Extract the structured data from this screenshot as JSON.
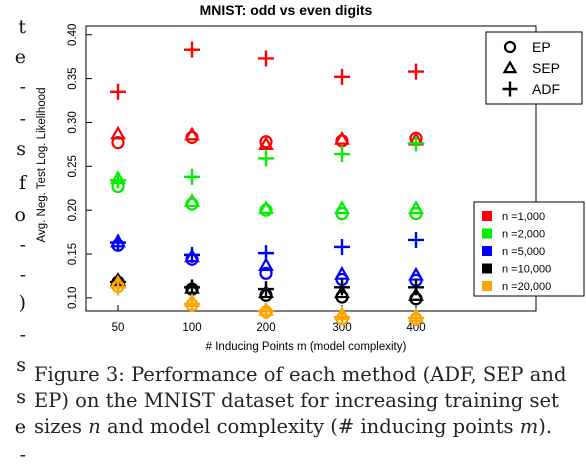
{
  "left_margin_fragments": [
    "t",
    "e",
    "-",
    "-",
    "s",
    "f",
    "o",
    "-",
    "-",
    ")",
    "-",
    "s",
    "s",
    "e",
    "-"
  ],
  "caption": {
    "label": "Figure 3:",
    "text_1": "Performance of each method (ADF, SEP and EP) on the MNIST dataset for increasing training set sizes",
    "var_n": "n",
    "text_2": "and model complexity (# inducing points",
    "var_m": "m",
    "text_3": ")."
  },
  "chart_data": {
    "type": "scatter",
    "title": "MNIST: odd vs even digits",
    "xlabel": "# Inducing Points m (model complexity)",
    "ylabel": "Avg. Neg. Test Log. Likelihood",
    "categories": [
      "50",
      "100",
      "200",
      "300",
      "400"
    ],
    "yticks": [
      0.1,
      0.15,
      0.2,
      0.25,
      0.3,
      0.35,
      0.4
    ],
    "ytick_labels": [
      "0.10",
      "0.15",
      "0.20",
      "0.25",
      "0.30",
      "0.35",
      "0.40"
    ],
    "ylim": [
      0.085,
      0.41
    ],
    "grid": false,
    "method_legend": {
      "position": "top-right",
      "entries": [
        {
          "label": "EP",
          "marker": "circle"
        },
        {
          "label": "SEP",
          "marker": "triangle"
        },
        {
          "label": "ADF",
          "marker": "plus"
        }
      ]
    },
    "size_legend": {
      "position": "right",
      "entries": [
        {
          "label": "n =1,000",
          "color": "#ff0000"
        },
        {
          "label": "n =2,000",
          "color": "#00ee00"
        },
        {
          "label": "n =5,000",
          "color": "#0000ff"
        },
        {
          "label": "n =10,000",
          "color": "#000000"
        },
        {
          "label": "n =20,000",
          "color": "#ffa500"
        }
      ]
    },
    "series": [
      {
        "n_index": 0,
        "method": "EP",
        "values": [
          0.277,
          0.283,
          0.278,
          0.279,
          0.282
        ]
      },
      {
        "n_index": 0,
        "method": "SEP",
        "values": [
          0.287,
          0.286,
          0.275,
          0.281,
          0.28
        ]
      },
      {
        "n_index": 0,
        "method": "ADF",
        "values": [
          0.335,
          0.383,
          0.373,
          0.352,
          0.358
        ]
      },
      {
        "n_index": 1,
        "method": "EP",
        "values": [
          0.227,
          0.207,
          0.2,
          0.196,
          0.196
        ]
      },
      {
        "n_index": 1,
        "method": "SEP",
        "values": [
          0.236,
          0.21,
          0.202,
          0.202,
          0.202
        ]
      },
      {
        "n_index": 1,
        "method": "ADF",
        "values": [
          0.234,
          0.238,
          0.259,
          0.264,
          0.276
        ]
      },
      {
        "n_index": 2,
        "method": "EP",
        "values": [
          0.16,
          0.144,
          0.128,
          0.121,
          0.12
        ]
      },
      {
        "n_index": 2,
        "method": "SEP",
        "values": [
          0.164,
          0.147,
          0.137,
          0.127,
          0.126
        ]
      },
      {
        "n_index": 2,
        "method": "ADF",
        "values": [
          0.163,
          0.149,
          0.151,
          0.158,
          0.166
        ]
      },
      {
        "n_index": 3,
        "method": "EP",
        "values": [
          0.118,
          0.11,
          0.103,
          0.101,
          0.099
        ]
      },
      {
        "n_index": 3,
        "method": "SEP",
        "values": [
          0.12,
          0.111,
          0.106,
          0.106,
          0.103
        ]
      },
      {
        "n_index": 3,
        "method": "ADF",
        "values": [
          0.118,
          0.112,
          0.11,
          0.112,
          0.112
        ]
      },
      {
        "n_index": 4,
        "method": "EP",
        "values": [
          0.113,
          0.092,
          0.084,
          0.076,
          0.076
        ]
      },
      {
        "n_index": 4,
        "method": "SEP",
        "values": [
          0.117,
          0.096,
          0.086,
          0.081,
          0.079
        ]
      },
      {
        "n_index": 4,
        "method": "ADF",
        "values": [
          0.112,
          0.093,
          0.085,
          0.078,
          0.077
        ]
      }
    ]
  }
}
